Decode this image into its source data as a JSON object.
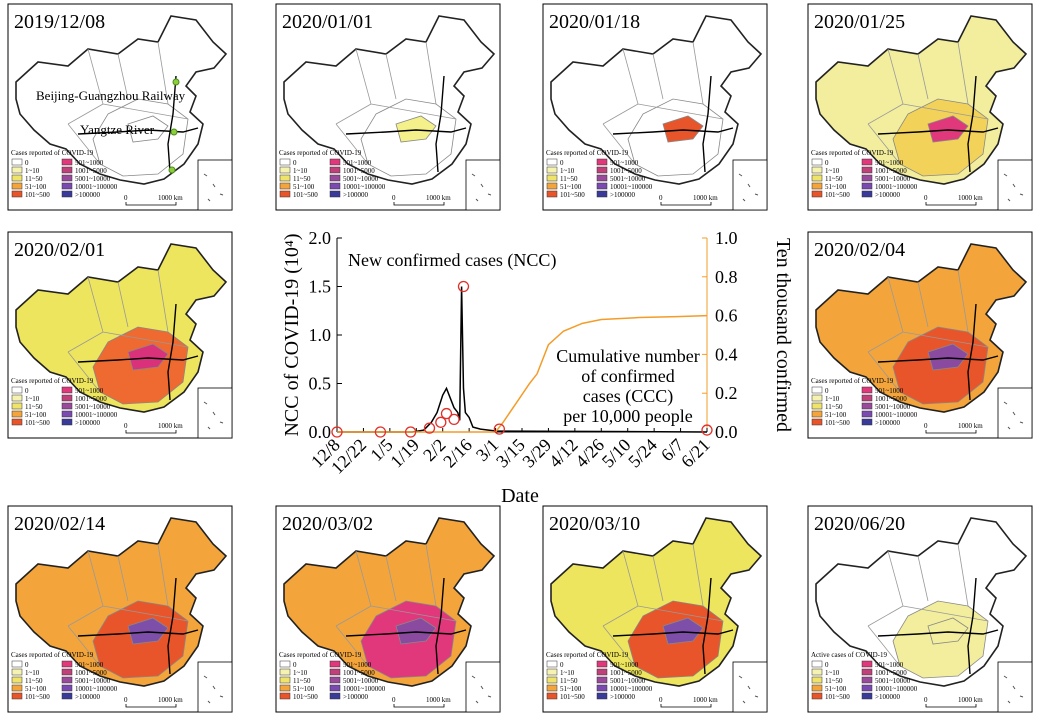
{
  "chart_data": {
    "type": "line",
    "x_label": "Date",
    "y_label": "NCC of COVID-19 (10⁴)",
    "y2_label": "Ten thousand confirmed",
    "annotations": [
      "New confirmed cases (NCC)",
      "Cumulative number",
      "of confirmed",
      "cases (CCC)",
      "per 10,000 people"
    ],
    "xlim": [
      0,
      196
    ],
    "xticks": [
      {
        "value": 0,
        "label": "12/8"
      },
      {
        "value": 14,
        "label": "12/22"
      },
      {
        "value": 28,
        "label": "1/5"
      },
      {
        "value": 42,
        "label": "1/19"
      },
      {
        "value": 56,
        "label": "2/2"
      },
      {
        "value": 70,
        "label": "2/16"
      },
      {
        "value": 84,
        "label": "3/1"
      },
      {
        "value": 98,
        "label": "3/15"
      },
      {
        "value": 112,
        "label": "3/29"
      },
      {
        "value": 126,
        "label": "4/12"
      },
      {
        "value": 140,
        "label": "4/26"
      },
      {
        "value": 154,
        "label": "5/10"
      },
      {
        "value": 168,
        "label": "5/24"
      },
      {
        "value": 182,
        "label": "6/7"
      },
      {
        "value": 196,
        "label": "6/21"
      }
    ],
    "ylim": [
      0,
      2
    ],
    "yticks": [
      {
        "value": 0,
        "label": "0.0"
      },
      {
        "value": 0.5,
        "label": "0.5"
      },
      {
        "value": 1,
        "label": "1.0"
      },
      {
        "value": 1.5,
        "label": "1.5"
      },
      {
        "value": 2,
        "label": "2.0"
      }
    ],
    "y2lim": [
      0,
      1
    ],
    "y2ticks": [
      {
        "value": 0,
        "label": "0.0"
      },
      {
        "value": 0.2,
        "label": "0.2"
      },
      {
        "value": 0.4,
        "label": "0.4"
      },
      {
        "value": 0.6,
        "label": "0.6"
      },
      {
        "value": 0.8,
        "label": "0.8"
      },
      {
        "value": 1,
        "label": "1.0"
      }
    ],
    "series": [
      {
        "color": "#000000",
        "x": [
          0,
          40,
          46,
          50,
          53,
          56,
          58,
          60,
          62,
          64,
          65,
          66,
          67,
          68,
          70,
          72,
          76,
          84,
          196
        ],
        "values": [
          0,
          0,
          0.02,
          0.1,
          0.2,
          0.38,
          0.45,
          0.35,
          0.25,
          0.2,
          0.12,
          1.5,
          0.45,
          0.2,
          0.15,
          0.05,
          0.03,
          0.01,
          0
        ]
      },
      {
        "color": "#f39c2a",
        "axis": "y2",
        "x": [
          0,
          84,
          88,
          95,
          102,
          106,
          112,
          120,
          130,
          140,
          160,
          180,
          196
        ],
        "values": [
          0,
          0,
          0.05,
          0.15,
          0.25,
          0.3,
          0.45,
          0.52,
          0.56,
          0.58,
          0.59,
          0.595,
          0.6
        ]
      },
      {
        "color": "#e0302a",
        "marker": "open-circle",
        "x": [
          0,
          23,
          39,
          49,
          55,
          58,
          62,
          67,
          86,
          196
        ],
        "values": [
          0,
          0,
          0,
          0.04,
          0.1,
          0.19,
          0.13,
          1.5,
          0.03,
          0.02
        ]
      }
    ]
  },
  "legend": {
    "items": [
      {
        "label": "0",
        "color": "#ffffff"
      },
      {
        "label": "1~10",
        "color": "#f6f3b0"
      },
      {
        "label": "11~50",
        "color": "#f0e36a"
      },
      {
        "label": "51~100",
        "color": "#f3a53c"
      },
      {
        "label": "101~500",
        "color": "#e8552a"
      },
      {
        "label": "501~1000",
        "color": "#e0387a"
      },
      {
        "label": "1001~5000",
        "color": "#c0407a"
      },
      {
        "label": "5001~10000",
        "color": "#9a4a9a"
      },
      {
        "label": "10001~100000",
        "color": "#7a4ab0"
      },
      {
        "label": ">100000",
        "color": "#3a3a9a"
      }
    ],
    "scale": "1000 km",
    "scale_zero": "0"
  },
  "maps": [
    {
      "date": "2019/12/08",
      "legend_title": "Cases reported of COVID-19",
      "colors": [
        "#ffffff",
        "#ffffff",
        "#ffffff"
      ],
      "annotations": [
        "Beijing-Guangzhou Railway",
        "Yangtze River"
      ]
    },
    {
      "date": "2020/01/01",
      "legend_title": "Cases reported of COVID-19",
      "colors": [
        "#ffffff",
        "#ffffff",
        "#f4f08a"
      ]
    },
    {
      "date": "2020/01/18",
      "legend_title": "Cases reported of COVID-19",
      "colors": [
        "#ffffff",
        "#ffffff",
        "#e8552a"
      ]
    },
    {
      "date": "2020/01/25",
      "legend_title": "Cases reported of COVID-19",
      "colors": [
        "#f2ee9e",
        "#f3d25a",
        "#e0387a"
      ]
    },
    {
      "date": "2020/02/01",
      "legend_title": "Cases reported of COVID-19",
      "colors": [
        "#eee55e",
        "#ef6a30",
        "#d9317a"
      ]
    },
    {
      "date": "2020/02/04",
      "legend_title": "Cases reported of COVID-19",
      "colors": [
        "#f3a53c",
        "#e8552a",
        "#8a4aa0"
      ]
    },
    {
      "date": "2020/02/14",
      "legend_title": "Cases reported of COVID-19",
      "colors": [
        "#f3a53c",
        "#e8552a",
        "#7e4fa8"
      ]
    },
    {
      "date": "2020/03/02",
      "legend_title": "Cases reported of COVID-19",
      "colors": [
        "#f3a53c",
        "#e0387a",
        "#8a4aa0"
      ]
    },
    {
      "date": "2020/03/10",
      "legend_title": "Cases reported of COVID-19",
      "colors": [
        "#eee55e",
        "#e8552a",
        "#7e4fa8"
      ]
    },
    {
      "date": "2020/06/20",
      "legend_title": "Active cases of COVID-19",
      "colors": [
        "#ffffff",
        "#f2ee9e",
        "#f2ee9e"
      ]
    }
  ]
}
